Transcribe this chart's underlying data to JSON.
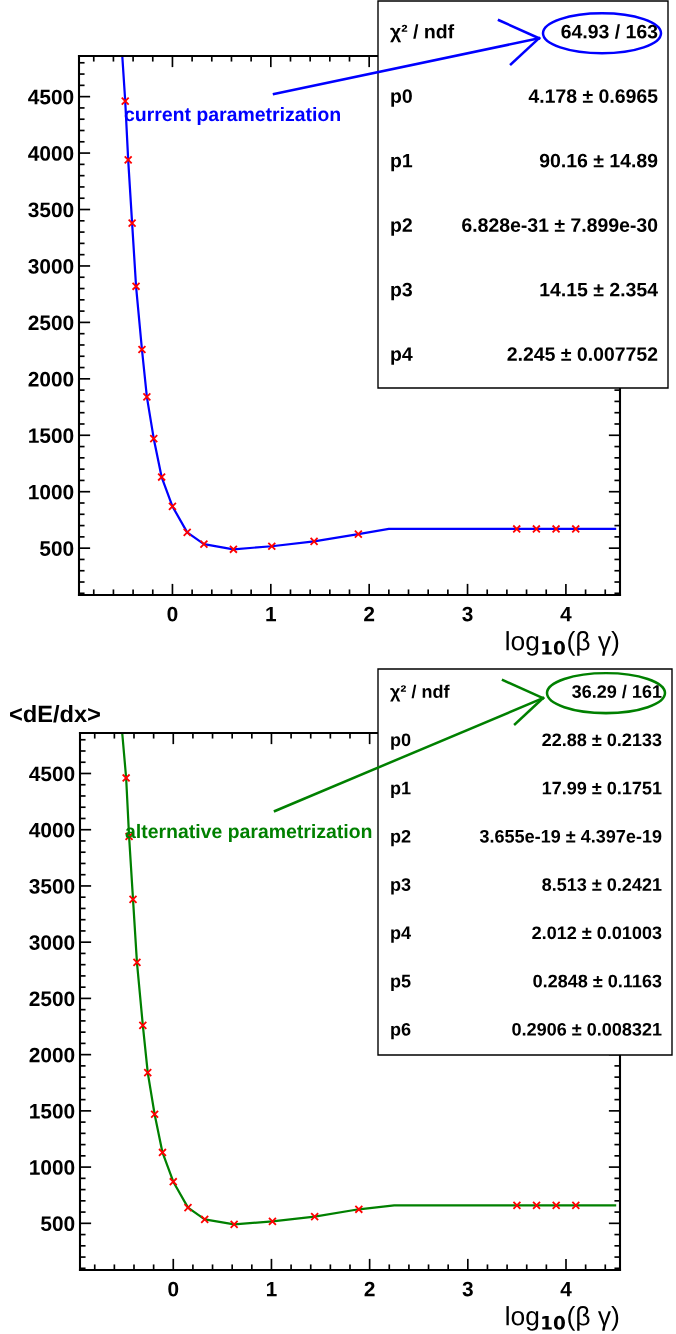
{
  "chart_data": [
    {
      "type": "scatter",
      "xlabel": "log$_{10}$(β γ)",
      "xlim": [
        -0.95,
        4.55
      ],
      "ylim": [
        85,
        4860
      ],
      "xticks": [
        0,
        1,
        2,
        3,
        4
      ],
      "yticks": [
        500,
        1000,
        1500,
        2000,
        2500,
        3000,
        3500,
        4000,
        4500
      ],
      "grid": false,
      "legend": false,
      "annotations": [
        "current parametrization",
        "χ² / ndf",
        "64.93 / 163",
        "p0",
        "4.178 ± 0.6965",
        "p1",
        "90.16 ± 14.89",
        "p2",
        "6.828e-31 ± 7.899e-30",
        "p3",
        "14.15 ± 2.354",
        "p4",
        "2.245 ± 0.007752"
      ],
      "series": [
        {
          "type": "line",
          "color": "#0000ff",
          "marker": "none",
          "x": [
            -0.51,
            -0.48,
            -0.45,
            -0.41,
            -0.37,
            -0.31,
            -0.26,
            -0.19,
            -0.11,
            0.0,
            0.15,
            0.32,
            0.62,
            1.01,
            1.44,
            1.89,
            2.2,
            3.0,
            4.5
          ],
          "values": [
            4860,
            4460,
            3940,
            3380,
            2820,
            2260,
            1840,
            1470,
            1130,
            870,
            640,
            535,
            490,
            517,
            560,
            625,
            670,
            670,
            670
          ]
        },
        {
          "color": "#ff0000",
          "marker": "cross",
          "x": [
            -0.48,
            -0.45,
            -0.41,
            -0.37,
            -0.31,
            -0.26,
            -0.19,
            -0.11,
            0.0,
            0.15,
            0.32,
            0.62,
            1.01,
            1.44,
            1.89,
            3.5,
            3.7,
            3.9,
            4.1
          ],
          "values": [
            4460,
            3940,
            3380,
            2820,
            2260,
            1840,
            1470,
            1130,
            870,
            640,
            535,
            490,
            517,
            560,
            625,
            670,
            670,
            670,
            670
          ]
        }
      ]
    },
    {
      "type": "scatter",
      "xlabel": "log$_{10}$(β γ)",
      "ylabel": "<dE/dx>",
      "xlim": [
        -0.95,
        4.55
      ],
      "ylim": [
        85,
        4860
      ],
      "xticks": [
        0,
        1,
        2,
        3,
        4
      ],
      "yticks": [
        500,
        1000,
        1500,
        2000,
        2500,
        3000,
        3500,
        4000,
        4500
      ],
      "grid": false,
      "legend": false,
      "annotations": [
        "alternative parametrization",
        "χ² / ndf",
        "36.29 / 161",
        "p0",
        "22.88 ± 0.2133",
        "p1",
        "17.99 ± 0.1751",
        "p2",
        "3.655e-19 ± 4.397e-19",
        "p3",
        "8.513 ± 0.2421",
        "p4",
        "2.012 ± 0.01003",
        "p5",
        "0.2848 ± 0.1163",
        "p6",
        "0.2906 ± 0.008321"
      ],
      "series": [
        {
          "type": "line",
          "color": "#008000",
          "marker": "none",
          "x": [
            -0.52,
            -0.48,
            -0.45,
            -0.41,
            -0.37,
            -0.31,
            -0.26,
            -0.19,
            -0.11,
            0.0,
            0.15,
            0.32,
            0.62,
            1.01,
            1.44,
            1.89,
            2.25,
            3.0,
            4.5
          ],
          "values": [
            4860,
            4460,
            3940,
            3380,
            2820,
            2260,
            1840,
            1470,
            1130,
            870,
            640,
            535,
            490,
            517,
            560,
            625,
            660,
            660,
            660
          ]
        },
        {
          "color": "#ff0000",
          "marker": "cross",
          "x": [
            -0.48,
            -0.45,
            -0.41,
            -0.37,
            -0.31,
            -0.26,
            -0.19,
            -0.11,
            0.0,
            0.15,
            0.32,
            0.62,
            1.01,
            1.44,
            1.89,
            3.5,
            3.7,
            3.9,
            4.1
          ],
          "values": [
            4460,
            3940,
            3380,
            2820,
            2260,
            1840,
            1470,
            1130,
            870,
            640,
            535,
            490,
            517,
            560,
            625,
            660,
            660,
            660,
            660
          ]
        }
      ]
    }
  ]
}
